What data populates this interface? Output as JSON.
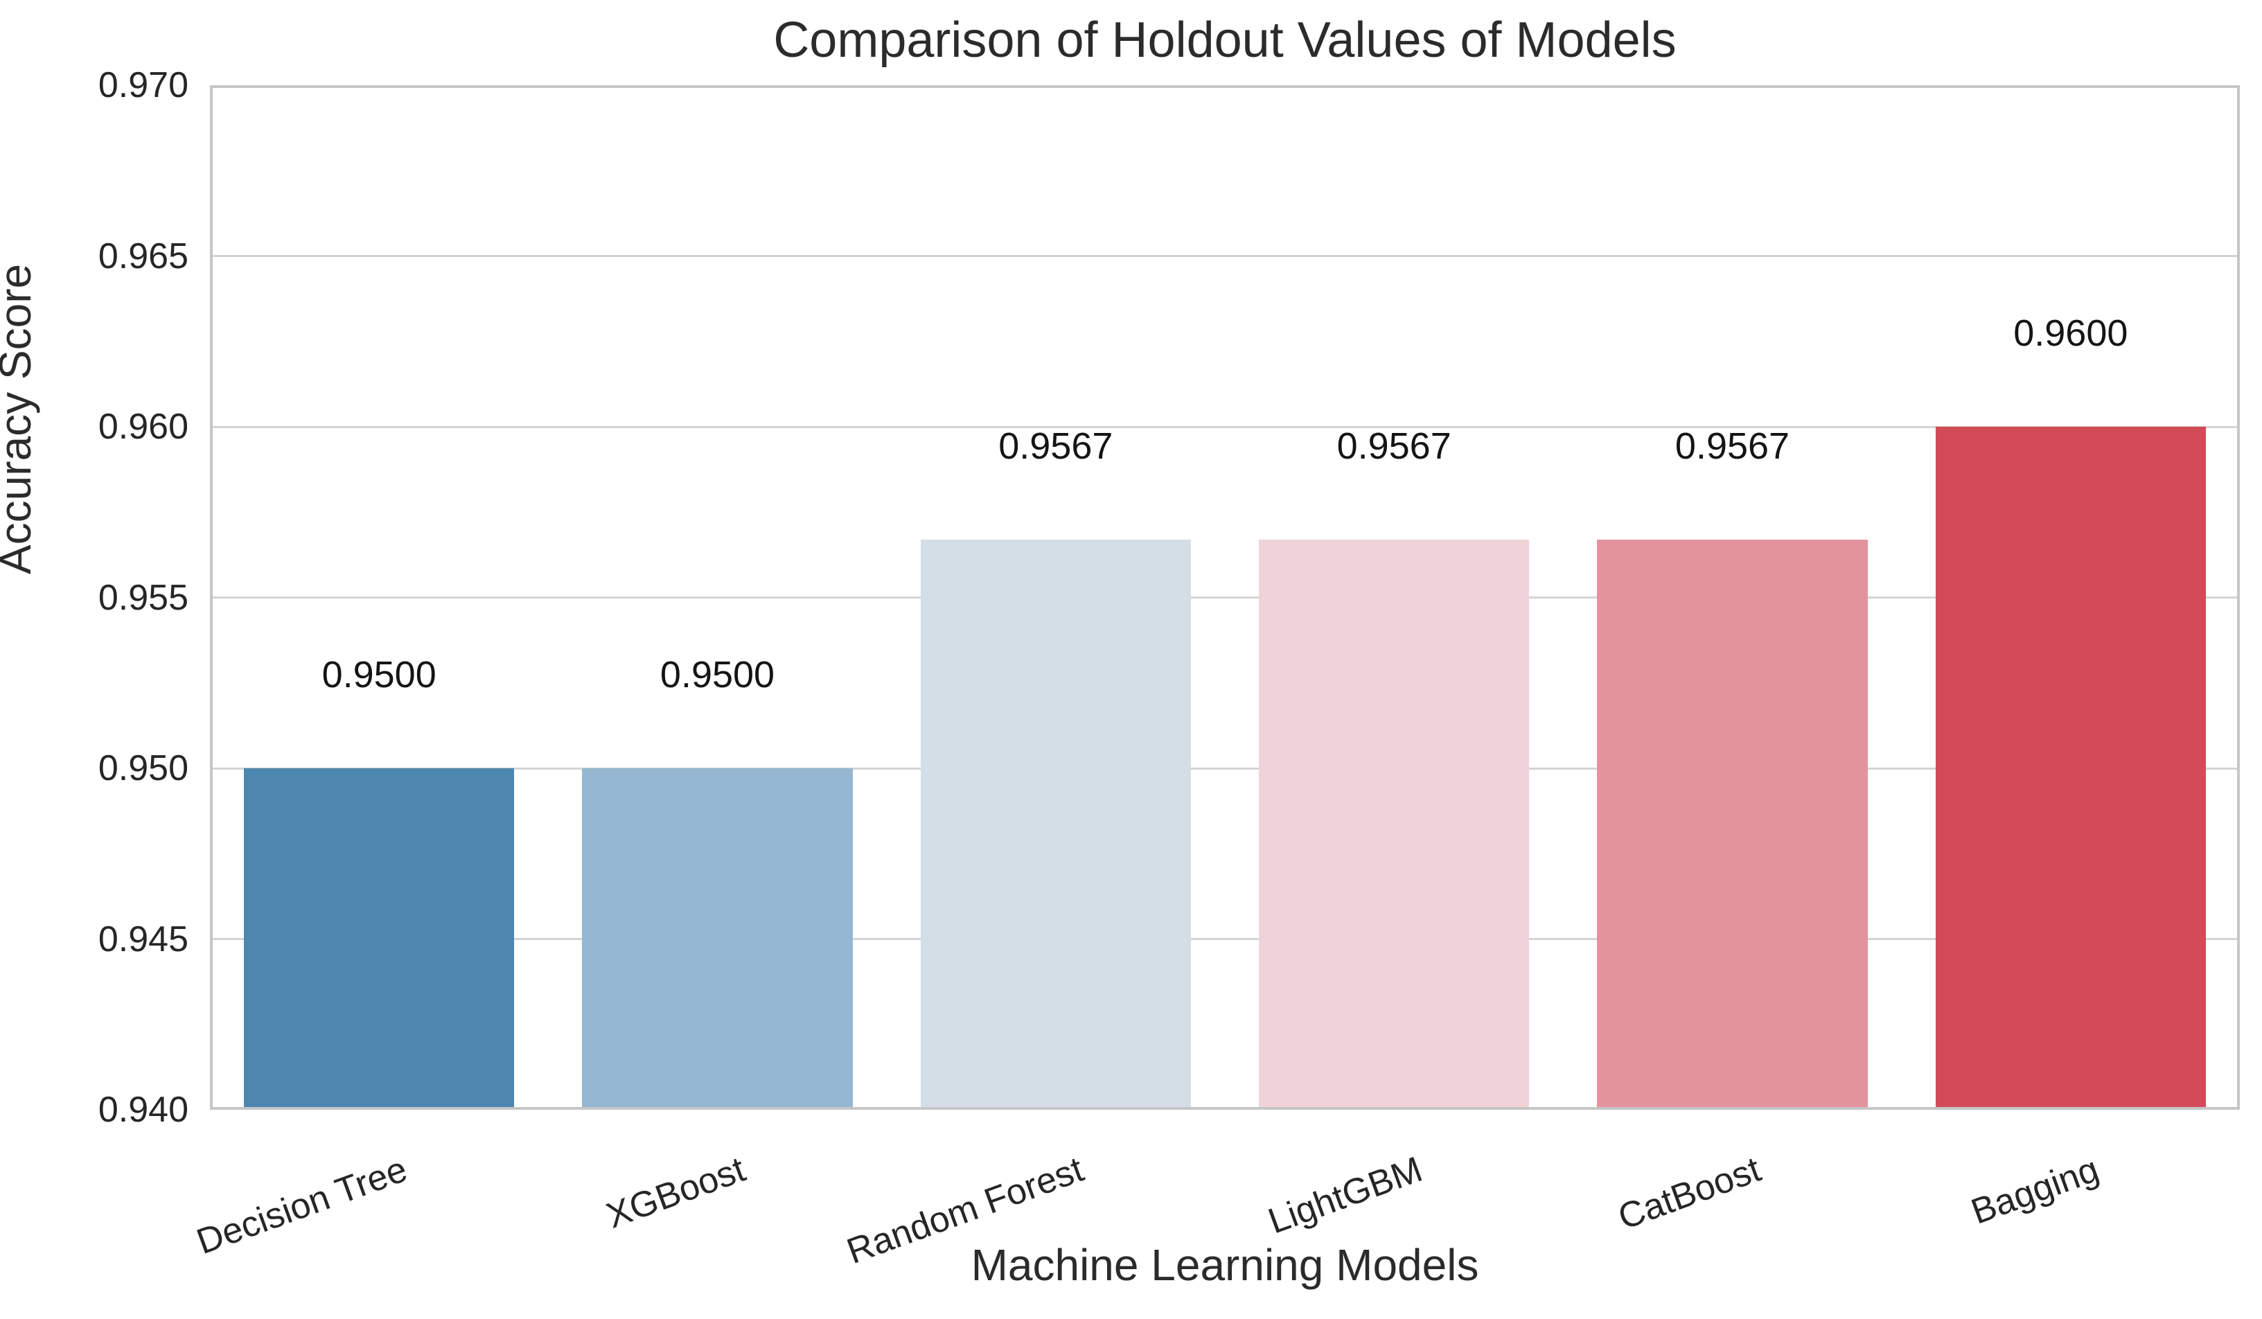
{
  "chart_data": {
    "type": "bar",
    "title": "Comparison of Holdout Values of Models",
    "xlabel": "Machine Learning Models",
    "ylabel": "Accuracy Score",
    "categories": [
      "Decision Tree",
      "XGBoost",
      "Random Forest",
      "LightGBM",
      "CatBoost",
      "Bagging"
    ],
    "values": [
      0.95,
      0.95,
      0.9567,
      0.9567,
      0.9567,
      0.96
    ],
    "bar_labels": [
      "0.9500",
      "0.9500",
      "0.9567",
      "0.9567",
      "0.9567",
      "0.9600"
    ],
    "bar_colors": [
      "#4d86ae",
      "#95b7d1",
      "#d4dee6",
      "#f0d3d8",
      "#e3939c",
      "#d24b57"
    ],
    "ylim": [
      0.94,
      0.97
    ],
    "yticks": [
      0.94,
      0.945,
      0.95,
      0.955,
      0.96,
      0.965,
      0.97
    ],
    "ytick_labels": [
      "0.940",
      "0.945",
      "0.950",
      "0.955",
      "0.960",
      "0.965",
      "0.970"
    ],
    "grid": "horizontal",
    "legend": "none",
    "bar_width_fraction": 0.8,
    "xtick_rotation_deg": 20
  },
  "style_colors": {
    "background": "#ffffff",
    "spine": "#c6c6c6",
    "gridline": "#d4d4d4",
    "text": "#262626"
  }
}
